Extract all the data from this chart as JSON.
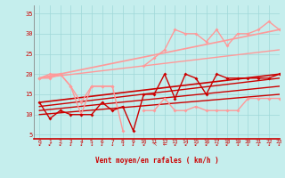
{
  "xlabel": "Vent moyen/en rafales ( km/h )",
  "xlim": [
    -0.5,
    23
  ],
  "ylim": [
    4,
    37
  ],
  "yticks": [
    5,
    10,
    15,
    20,
    25,
    30,
    35
  ],
  "xticks": [
    0,
    1,
    2,
    3,
    4,
    5,
    6,
    7,
    8,
    9,
    10,
    11,
    12,
    13,
    14,
    15,
    16,
    17,
    18,
    19,
    20,
    21,
    22,
    23
  ],
  "bg_color": "#c5eeed",
  "grid_color": "#9fd8d8",
  "line_color_dark": "#cc0000",
  "series": [
    {
      "comment": "light pink - rafales jagged upper line with markers",
      "x": [
        0,
        1,
        2,
        3,
        4,
        5,
        6,
        7,
        8,
        9,
        10,
        11,
        12,
        13,
        14,
        15,
        16,
        17,
        18,
        19,
        20,
        21,
        22,
        23
      ],
      "y": [
        19,
        20,
        20,
        17,
        13,
        17,
        17,
        17,
        null,
        null,
        22,
        24,
        26,
        31,
        30,
        30,
        28,
        31,
        27,
        30,
        30,
        31,
        33,
        31
      ],
      "color": "#ff9999",
      "lw": 1.0,
      "marker": "D",
      "ms": 2.0,
      "zorder": 3
    },
    {
      "comment": "light pink - bottom jagged line with markers (vent moyen light series)",
      "x": [
        0,
        1,
        2,
        3,
        4,
        5,
        6,
        7,
        8,
        9,
        10,
        11,
        12,
        13,
        14,
        15,
        16,
        17,
        18,
        19,
        20,
        21,
        22,
        23
      ],
      "y": [
        19,
        19,
        20,
        17,
        10,
        17,
        17,
        17,
        6,
        null,
        11,
        11,
        14,
        11,
        11,
        12,
        11,
        11,
        11,
        11,
        14,
        14,
        14,
        14
      ],
      "color": "#ff9999",
      "lw": 1.0,
      "marker": "D",
      "ms": 2.0,
      "zorder": 3
    },
    {
      "comment": "light pink straight regression line upper",
      "x": [
        0,
        23
      ],
      "y": [
        19,
        31
      ],
      "color": "#ff9999",
      "lw": 1.2,
      "marker": null,
      "ms": 0,
      "zorder": 2
    },
    {
      "comment": "light pink straight regression line lower",
      "x": [
        0,
        23
      ],
      "y": [
        19,
        26
      ],
      "color": "#ff9999",
      "lw": 1.0,
      "marker": null,
      "ms": 0,
      "zorder": 2
    },
    {
      "comment": "dark red - main jagged line with markers (vent moyen)",
      "x": [
        0,
        1,
        2,
        3,
        4,
        5,
        6,
        7,
        8,
        9,
        10,
        11,
        12,
        13,
        14,
        15,
        16,
        17,
        18,
        19,
        20,
        21,
        22,
        23
      ],
      "y": [
        13,
        9,
        11,
        10,
        10,
        10,
        13,
        11,
        12,
        6,
        15,
        15,
        20,
        14,
        20,
        19,
        15,
        20,
        19,
        19,
        19,
        19,
        19,
        20
      ],
      "color": "#cc0000",
      "lw": 1.0,
      "marker": "D",
      "ms": 2.0,
      "zorder": 4
    },
    {
      "comment": "dark red straight line lower regression 1",
      "x": [
        0,
        23
      ],
      "y": [
        10,
        15
      ],
      "color": "#cc0000",
      "lw": 1.0,
      "marker": null,
      "ms": 0,
      "zorder": 2
    },
    {
      "comment": "dark red straight line regression 2",
      "x": [
        0,
        23
      ],
      "y": [
        11,
        17
      ],
      "color": "#cc0000",
      "lw": 1.0,
      "marker": null,
      "ms": 0,
      "zorder": 2
    },
    {
      "comment": "dark red straight line regression 3",
      "x": [
        0,
        23
      ],
      "y": [
        12,
        19
      ],
      "color": "#cc0000",
      "lw": 1.0,
      "marker": null,
      "ms": 0,
      "zorder": 2
    },
    {
      "comment": "dark red straight line regression upper",
      "x": [
        0,
        23
      ],
      "y": [
        13,
        20
      ],
      "color": "#cc0000",
      "lw": 1.2,
      "marker": null,
      "ms": 0,
      "zorder": 2
    }
  ],
  "wind_arrows": [
    "arrow_sw",
    "arrow_sw",
    "arrow_sw",
    "arrow_down",
    "arrow_down",
    "arrow_down",
    "arrow_down",
    "arrow_down",
    "arrow_down",
    "arrow_down",
    "arrow_sw",
    "arrow_nw",
    "arrow_left",
    "arrow_sw",
    "arrow_sw",
    "arrow_sw",
    "arrow_sw",
    "arrow_sw",
    "arrow_sw",
    "arrow_down",
    "arrow_down",
    "arrow_down",
    "arrow_down",
    "arrow_down"
  ]
}
